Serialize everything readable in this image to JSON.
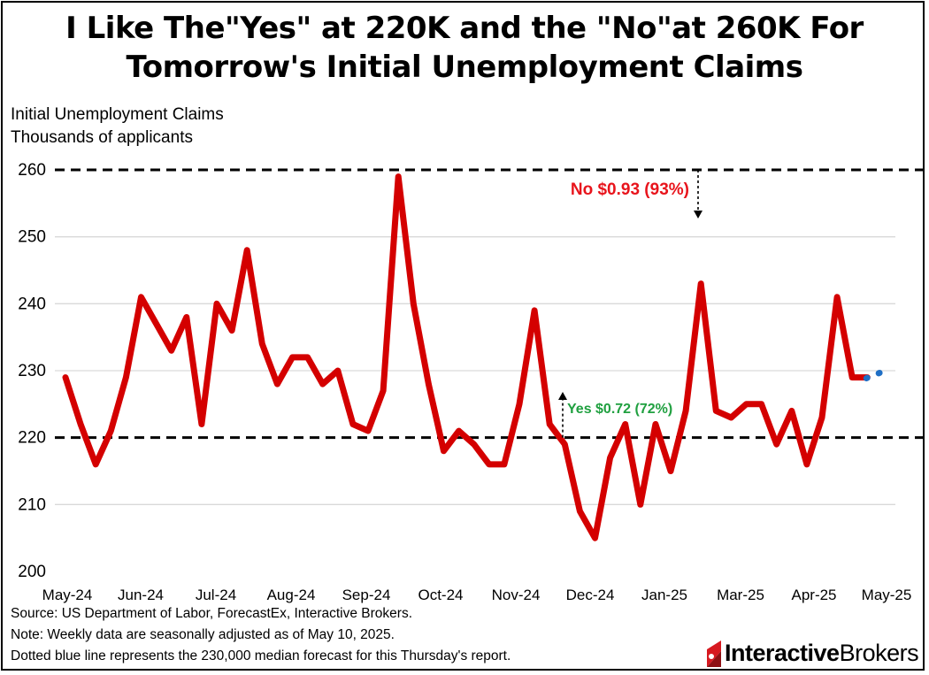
{
  "title_line1": "I Like The\"Yes\" at 220K and the \"No\"at 260K For",
  "title_line2": "Tomorrow's Initial Unemployment Claims",
  "subtitle_line1": "Initial Unemployment Claims",
  "subtitle_line2": "Thousands of applicants",
  "source_line1": "Source: US Department of Labor, ForecastEx, Interactive Brokers.",
  "source_line2": "Note: Weekly data are seasonally adjusted as of May 10, 2025.",
  "source_line3": "Dotted blue line represents the 230,000 median forecast for this Thursday's report.",
  "logo": {
    "part1": "Interactive",
    "part2": "Brokers",
    "icon": "interactive-brokers-logo-icon"
  },
  "colors": {
    "series": "#d40000",
    "forecast": "#1f6fc5",
    "yes": "#20a040",
    "no": "#e8141c",
    "grid": "#d9d9d9"
  },
  "chart_data": {
    "type": "line",
    "ylim": [
      200,
      260
    ],
    "yticks": [
      200,
      210,
      220,
      230,
      240,
      250,
      260
    ],
    "grid": true,
    "xtick_labels": [
      "May-24",
      "Jun-24",
      "Jul-24",
      "Aug-24",
      "Sep-24",
      "Oct-24",
      "Nov-24",
      "Dec-24",
      "Jan-25",
      "Mar-25",
      "Apr-25",
      "May-25"
    ],
    "series": [
      {
        "values": [
          229,
          222,
          216,
          221,
          229,
          241,
          237,
          233,
          238,
          222,
          240,
          236,
          248,
          234,
          228,
          232,
          232,
          228,
          230,
          222,
          221,
          227,
          259,
          240,
          228,
          218,
          221,
          219,
          216,
          216,
          225,
          239,
          222,
          219,
          209,
          205,
          217,
          222,
          210,
          222,
          215,
          224,
          243,
          224,
          223,
          225,
          225,
          219,
          224,
          216,
          223,
          241,
          229,
          229
        ]
      }
    ],
    "forecast": {
      "value": 230
    },
    "thresholds": [
      {
        "value": 260,
        "label": "No $0.93 (93%)",
        "kind": "no"
      },
      {
        "value": 220,
        "label": "Yes $0.72 (72%)",
        "kind": "yes"
      }
    ]
  }
}
